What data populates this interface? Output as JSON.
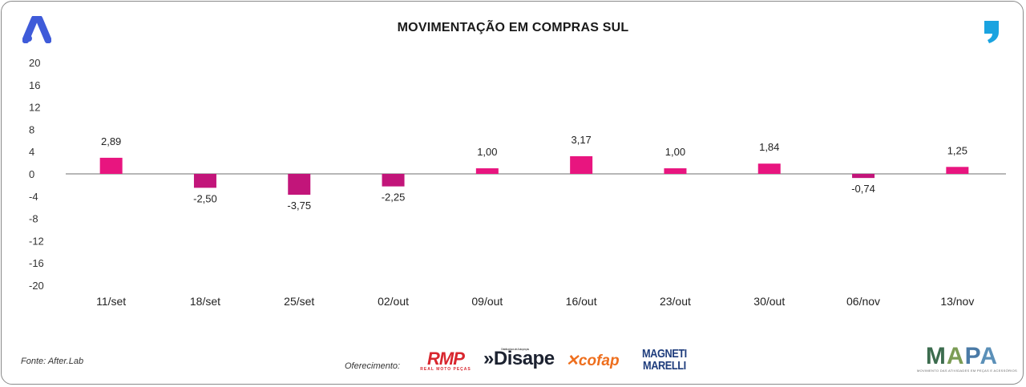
{
  "title": "MOVIMENTAÇÃO EM COMPRAS SUL",
  "source": "Fonte: After.Lab",
  "offer_label": "Oferecimento:",
  "icons": {
    "left_logo": "after-lab-a-logo-icon",
    "right_logo": "quote-comma-logo-icon"
  },
  "sponsors": {
    "rmp": {
      "name": "RMP",
      "tagline": "REAL MOTO PEÇAS",
      "color": "#d8262e"
    },
    "disape": {
      "name": "Disape",
      "tagline": "Distribuidora de Autopeças",
      "color": "#1c2230"
    },
    "cofap": {
      "name": "cofap",
      "color": "#ee6f1e"
    },
    "magneti": {
      "line1": "MAGNETI",
      "line2": "MARELLI",
      "color": "#1e3c7c"
    }
  },
  "mapa": {
    "name": "MAPA",
    "letters": [
      "M",
      "A",
      "P",
      "A"
    ],
    "tagline": "MOVIMENTO DAS ATIVIDADES EM PEÇAS E ACESSÓRIOS"
  },
  "colors": {
    "positive": "#e8157f",
    "negative": "#c2157a",
    "axis": "#8c8c8c",
    "accent_blue": "#3f5bd9",
    "accent_cyan": "#1aa3e0"
  },
  "chart_data": {
    "type": "bar",
    "title": "MOVIMENTAÇÃO EM COMPRAS SUL",
    "categories": [
      "11/set",
      "18/set",
      "25/set",
      "02/out",
      "09/out",
      "16/out",
      "23/out",
      "30/out",
      "06/nov",
      "13/nov"
    ],
    "values": [
      2.89,
      -2.5,
      -3.75,
      -2.25,
      1.0,
      3.17,
      1.0,
      1.84,
      -0.74,
      1.25
    ],
    "labels": [
      "2,89",
      "-2,50",
      "-3,75",
      "-2,25",
      "1,00",
      "3,17",
      "1,00",
      "1,84",
      "-0,74",
      "1,25"
    ],
    "yticks": [
      20,
      16,
      12,
      8,
      4,
      0,
      -4,
      -8,
      -12,
      -16,
      -20
    ],
    "ylim": [
      -20,
      20
    ],
    "xlabel": "",
    "ylabel": "",
    "grid": false,
    "legend": "none"
  }
}
